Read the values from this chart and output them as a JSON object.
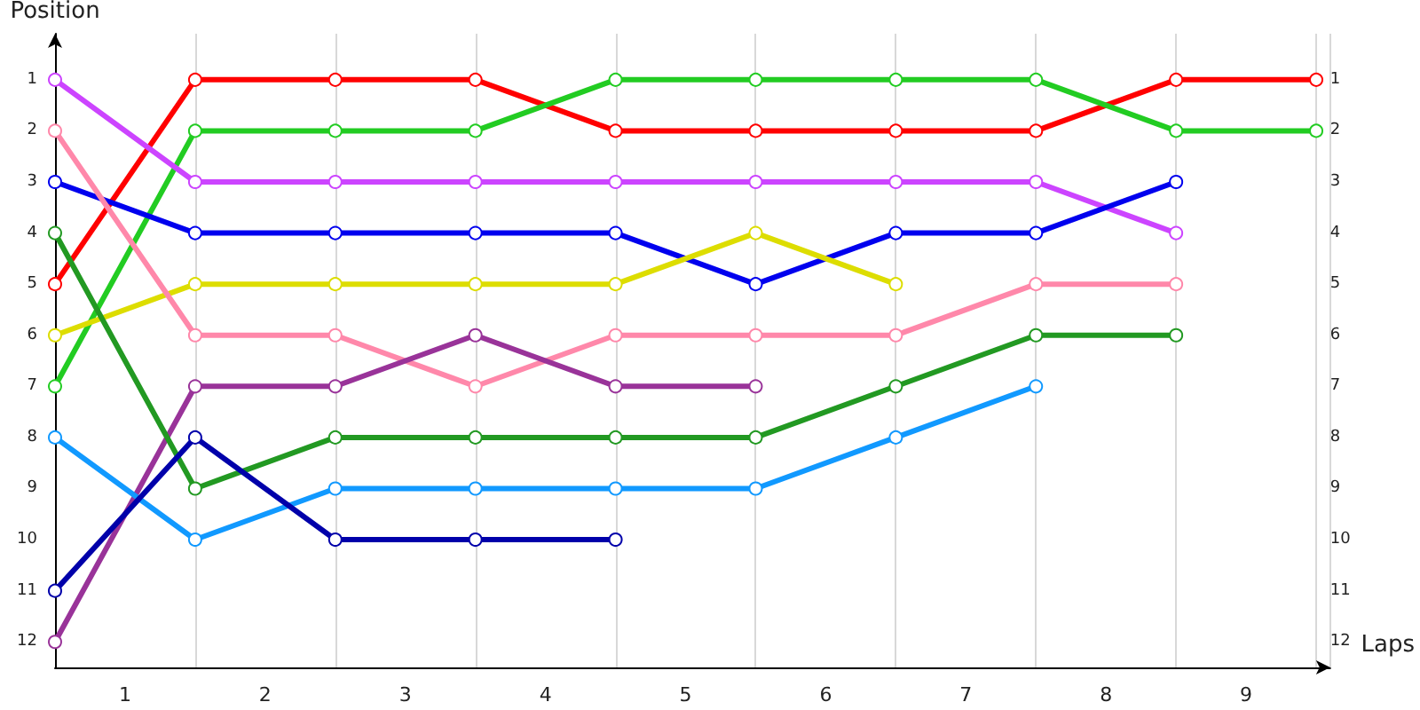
{
  "chart_data": {
    "type": "line",
    "xlabel": "Laps",
    "ylabel": "Position",
    "x": [
      0,
      1,
      2,
      3,
      4,
      5,
      6,
      7,
      8,
      9
    ],
    "series": [
      {
        "color": "#ff0000",
        "values": [
          5,
          1,
          1,
          1,
          2,
          2,
          2,
          2,
          1,
          1
        ]
      },
      {
        "color": "#22cc22",
        "values": [
          7,
          2,
          2,
          2,
          1,
          1,
          1,
          1,
          2,
          2
        ]
      },
      {
        "color": "#cc44ff",
        "values": [
          1,
          3,
          3,
          3,
          3,
          3,
          3,
          3,
          4,
          null
        ]
      },
      {
        "color": "#0000ee",
        "values": [
          3,
          4,
          4,
          4,
          4,
          5,
          4,
          4,
          3,
          null
        ]
      },
      {
        "color": "#dddd00",
        "values": [
          6,
          5,
          5,
          5,
          5,
          4,
          5,
          null,
          null,
          null
        ]
      },
      {
        "color": "#ff88aa",
        "values": [
          2,
          6,
          6,
          7,
          6,
          6,
          6,
          5,
          5,
          null
        ]
      },
      {
        "color": "#993399",
        "values": [
          12,
          7,
          7,
          6,
          7,
          7,
          null,
          null,
          null,
          null
        ]
      },
      {
        "color": "#229922",
        "values": [
          4,
          9,
          8,
          8,
          8,
          8,
          7,
          6,
          6,
          null
        ]
      },
      {
        "color": "#1199ff",
        "values": [
          8,
          10,
          9,
          9,
          9,
          9,
          8,
          7,
          null,
          null
        ]
      },
      {
        "color": "#0000aa",
        "values": [
          11,
          8,
          10,
          10,
          10,
          null,
          null,
          null,
          null,
          null
        ]
      }
    ],
    "xlim": [
      0,
      9.1
    ],
    "xticks": [
      {
        "value": 0,
        "label": null
      },
      {
        "value": 0.5,
        "label": "1"
      },
      {
        "value": 1,
        "label": null
      },
      {
        "value": 1.5,
        "label": "2"
      },
      {
        "value": 2,
        "label": null
      },
      {
        "value": 2.5,
        "label": "3"
      },
      {
        "value": 3,
        "label": null
      },
      {
        "value": 3.5,
        "label": "4"
      },
      {
        "value": 4,
        "label": null
      },
      {
        "value": 4.5,
        "label": "5"
      },
      {
        "value": 5,
        "label": null
      },
      {
        "value": 5.5,
        "label": "6"
      },
      {
        "value": 6,
        "label": null
      },
      {
        "value": 6.5,
        "label": "7"
      },
      {
        "value": 7,
        "label": null
      },
      {
        "value": 7.5,
        "label": "8"
      },
      {
        "value": 8,
        "label": null
      },
      {
        "value": 8.5,
        "label": "9"
      },
      {
        "value": 9,
        "label": null
      }
    ],
    "ylim": [
      12.5,
      0.1
    ],
    "yticks": [
      1,
      2,
      3,
      4,
      5,
      6,
      7,
      8,
      9,
      10,
      11,
      12
    ],
    "y2lim": [
      12.5,
      0.1
    ],
    "y2ticks": [
      1,
      2,
      3,
      4,
      5,
      6,
      7,
      8,
      9,
      10,
      11,
      12
    ],
    "grid": "x",
    "marker": "circle",
    "line_style": "solid"
  }
}
